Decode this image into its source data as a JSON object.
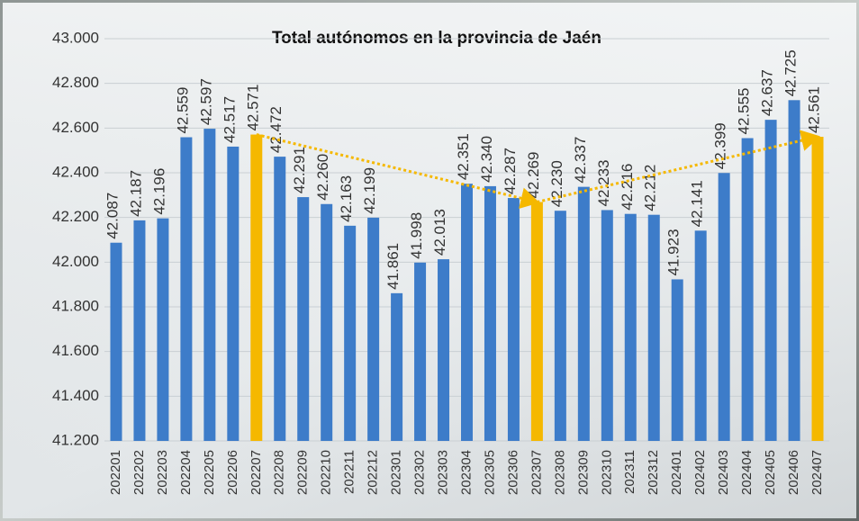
{
  "chart_data": {
    "type": "bar",
    "title": "Total autónomos en la provincia de Jaén",
    "categories": [
      "202201",
      "202202",
      "202203",
      "202204",
      "202205",
      "202206",
      "202207",
      "202208",
      "202209",
      "202210",
      "202211",
      "202212",
      "202301",
      "202302",
      "202303",
      "202304",
      "202305",
      "202306",
      "202307",
      "202308",
      "202309",
      "202310",
      "202311",
      "202312",
      "202401",
      "202402",
      "202403",
      "202404",
      "202405",
      "202406",
      "202407"
    ],
    "values": [
      42087,
      42187,
      42196,
      42559,
      42597,
      42517,
      42571,
      42472,
      42291,
      42260,
      42163,
      42199,
      41861,
      41998,
      42013,
      42351,
      42340,
      42287,
      42269,
      42230,
      42337,
      42233,
      42216,
      42212,
      41923,
      42141,
      42399,
      42555,
      42637,
      42725,
      42561
    ],
    "value_labels": [
      "42.087",
      "42.187",
      "42.196",
      "42.559",
      "42.597",
      "42.517",
      "42.571",
      "42.472",
      "42.291",
      "42.260",
      "42.163",
      "42.199",
      "41.861",
      "41.998",
      "42.013",
      "42.351",
      "42.340",
      "42.287",
      "42.269",
      "42.230",
      "42.337",
      "42.233",
      "42.216",
      "42.212",
      "41.923",
      "42.141",
      "42.399",
      "42.555",
      "42.637",
      "42.725",
      "42.561"
    ],
    "colors": [
      "#3d7cc9",
      "#3d7cc9",
      "#3d7cc9",
      "#3d7cc9",
      "#3d7cc9",
      "#3d7cc9",
      "#f5b800",
      "#3d7cc9",
      "#3d7cc9",
      "#3d7cc9",
      "#3d7cc9",
      "#3d7cc9",
      "#3d7cc9",
      "#3d7cc9",
      "#3d7cc9",
      "#3d7cc9",
      "#3d7cc9",
      "#3d7cc9",
      "#f5b800",
      "#3d7cc9",
      "#3d7cc9",
      "#3d7cc9",
      "#3d7cc9",
      "#3d7cc9",
      "#3d7cc9",
      "#3d7cc9",
      "#3d7cc9",
      "#3d7cc9",
      "#3d7cc9",
      "#3d7cc9",
      "#f5b800"
    ],
    "ylim": [
      41200,
      43000
    ],
    "yticks": [
      {
        "value": 41200,
        "label": "41.200"
      },
      {
        "value": 41400,
        "label": "41.400"
      },
      {
        "value": 41600,
        "label": "41.600"
      },
      {
        "value": 41800,
        "label": "41.800"
      },
      {
        "value": 42000,
        "label": "42.000"
      },
      {
        "value": 42200,
        "label": "42.200"
      },
      {
        "value": 42400,
        "label": "42.400"
      },
      {
        "value": 42600,
        "label": "42.600"
      },
      {
        "value": 42800,
        "label": "42.800"
      },
      {
        "value": 43000,
        "label": "43.000"
      }
    ],
    "grid": true
  }
}
